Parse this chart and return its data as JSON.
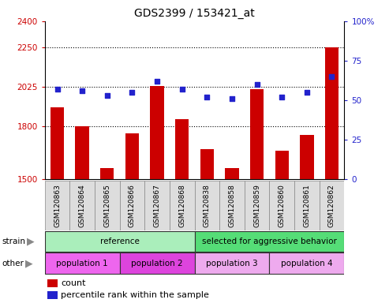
{
  "title": "GDS2399 / 153421_at",
  "samples": [
    "GSM120863",
    "GSM120864",
    "GSM120865",
    "GSM120866",
    "GSM120867",
    "GSM120868",
    "GSM120838",
    "GSM120858",
    "GSM120859",
    "GSM120860",
    "GSM120861",
    "GSM120862"
  ],
  "counts": [
    1910,
    1800,
    1560,
    1760,
    2030,
    1840,
    1670,
    1560,
    2010,
    1660,
    1750,
    2250
  ],
  "percentiles": [
    57,
    56,
    53,
    55,
    62,
    57,
    52,
    51,
    60,
    52,
    55,
    65
  ],
  "ylim_left": [
    1500,
    2400
  ],
  "ylim_right": [
    0,
    100
  ],
  "yticks_left": [
    1500,
    1800,
    2025,
    2250,
    2400
  ],
  "yticks_right": [
    0,
    25,
    50,
    75,
    100
  ],
  "ytick_labels_left": [
    "1500",
    "1800",
    "2025",
    "2250",
    "2400"
  ],
  "ytick_labels_right": [
    "0",
    "25",
    "50",
    "75",
    "100%"
  ],
  "hlines": [
    1800,
    2025,
    2250
  ],
  "bar_color": "#cc0000",
  "dot_color": "#2222cc",
  "strain_groups": [
    {
      "label": "reference",
      "start": 0,
      "end": 6,
      "color": "#aaeebb"
    },
    {
      "label": "selected for aggressive behavior",
      "start": 6,
      "end": 12,
      "color": "#55dd77"
    }
  ],
  "other_groups": [
    {
      "label": "population 1",
      "start": 0,
      "end": 3,
      "color": "#ee66ee"
    },
    {
      "label": "population 2",
      "start": 3,
      "end": 6,
      "color": "#dd44dd"
    },
    {
      "label": "population 3",
      "start": 6,
      "end": 9,
      "color": "#eeaaee"
    },
    {
      "label": "population 4",
      "start": 9,
      "end": 12,
      "color": "#eeaaee"
    }
  ],
  "strain_label": "strain",
  "other_label": "other",
  "legend_count_label": "count",
  "legend_pct_label": "percentile rank within the sample",
  "background_color": "#ffffff",
  "plot_bg_color": "#ffffff",
  "tick_color_left": "#cc0000",
  "tick_color_right": "#2222cc",
  "grid_color": "#000000",
  "bar_width": 0.55,
  "xtick_bg": "#dddddd"
}
